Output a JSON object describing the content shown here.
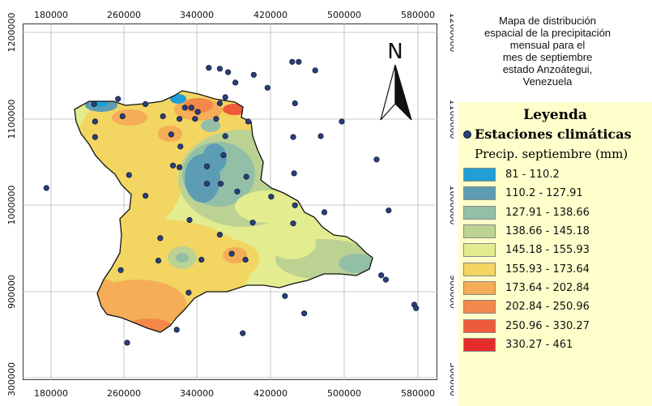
{
  "title_lines": [
    "Mapa de  distribución",
    "espacial de la precipitación",
    "mensual para el",
    "mes de septiembre",
    "estado Anzoátegui,",
    "Venezuela"
  ],
  "north_arrow": {
    "label": "N"
  },
  "axes": {
    "x_ticks": [
      "180000",
      "260000",
      "340000",
      "420000",
      "500000",
      "580000"
    ],
    "y_ticks": [
      "1200000",
      "1100000",
      "1000000",
      "900000",
      "300000"
    ]
  },
  "legend": {
    "title": "Leyenda",
    "stations_label": "Estaciones climáticas",
    "precip_title": "Precip. septiembre (mm)",
    "classes": [
      {
        "label": "81 - 110.2",
        "color": "#1f9fd6"
      },
      {
        "label": "110.2 - 127.91",
        "color": "#5d9db4"
      },
      {
        "label": "127.91 - 138.66",
        "color": "#93bfa6"
      },
      {
        "label": "138.66 - 145.18",
        "color": "#bcd293"
      },
      {
        "label": "145.18 - 155.93",
        "color": "#e3ec8f"
      },
      {
        "label": "155.93 - 173.64",
        "color": "#f3d562"
      },
      {
        "label": "173.64 - 202.84",
        "color": "#f5ad57"
      },
      {
        "label": "202.84 - 250.96",
        "color": "#f3884a"
      },
      {
        "label": "250.96 - 330.27",
        "color": "#ee5b3b"
      },
      {
        "label": "330.27 - 461",
        "color": "#e62b2b"
      }
    ]
  },
  "stations": [
    {
      "x": 352000,
      "y": 1159000
    },
    {
      "x": 364000,
      "y": 1158000
    },
    {
      "x": 373000,
      "y": 1154000
    },
    {
      "x": 381000,
      "y": 1142000
    },
    {
      "x": 401000,
      "y": 1151000
    },
    {
      "x": 416000,
      "y": 1136000
    },
    {
      "x": 443000,
      "y": 1166000
    },
    {
      "x": 450000,
      "y": 1166000
    },
    {
      "x": 468000,
      "y": 1156000
    },
    {
      "x": 446000,
      "y": 1118000
    },
    {
      "x": 497000,
      "y": 1097000
    },
    {
      "x": 474000,
      "y": 1080000
    },
    {
      "x": 444000,
      "y": 1079000
    },
    {
      "x": 535000,
      "y": 1053000
    },
    {
      "x": 445000,
      "y": 1037000
    },
    {
      "x": 420000,
      "y": 1010000
    },
    {
      "x": 446000,
      "y": 1000000
    },
    {
      "x": 478000,
      "y": 992000
    },
    {
      "x": 548000,
      "y": 994000
    },
    {
      "x": 444000,
      "y": 979000
    },
    {
      "x": 540000,
      "y": 919000
    },
    {
      "x": 545000,
      "y": 914000
    },
    {
      "x": 576000,
      "y": 885000
    },
    {
      "x": 578000,
      "y": 881000
    },
    {
      "x": 435000,
      "y": 895000
    },
    {
      "x": 456000,
      "y": 875000
    },
    {
      "x": 389000,
      "y": 852000
    },
    {
      "x": 175000,
      "y": 1020000
    },
    {
      "x": 227000,
      "y": 1117000
    },
    {
      "x": 253000,
      "y": 1123000
    },
    {
      "x": 258000,
      "y": 1103000
    },
    {
      "x": 283000,
      "y": 1117000
    },
    {
      "x": 302000,
      "y": 1103000
    },
    {
      "x": 320000,
      "y": 1100000
    },
    {
      "x": 326000,
      "y": 1113000
    },
    {
      "x": 333000,
      "y": 1113000
    },
    {
      "x": 340000,
      "y": 1108000
    },
    {
      "x": 337000,
      "y": 1100000
    },
    {
      "x": 360000,
      "y": 1100000
    },
    {
      "x": 364000,
      "y": 1118000
    },
    {
      "x": 370000,
      "y": 1125000
    },
    {
      "x": 395000,
      "y": 1097000
    },
    {
      "x": 228000,
      "y": 1097000
    },
    {
      "x": 228000,
      "y": 1079000
    },
    {
      "x": 311000,
      "y": 1082000
    },
    {
      "x": 321000,
      "y": 1068000
    },
    {
      "x": 368000,
      "y": 1058000
    },
    {
      "x": 313000,
      "y": 1046000
    },
    {
      "x": 320000,
      "y": 1044000
    },
    {
      "x": 350000,
      "y": 1045000
    },
    {
      "x": 393000,
      "y": 1033000
    },
    {
      "x": 365000,
      "y": 1025000
    },
    {
      "x": 350000,
      "y": 1025000
    },
    {
      "x": 265000,
      "y": 1035000
    },
    {
      "x": 283000,
      "y": 1011000
    },
    {
      "x": 383000,
      "y": 1016000
    },
    {
      "x": 331000,
      "y": 983000
    },
    {
      "x": 364000,
      "y": 966000
    },
    {
      "x": 400000,
      "y": 980000
    },
    {
      "x": 377000,
      "y": 944000
    },
    {
      "x": 299000,
      "y": 962000
    },
    {
      "x": 297000,
      "y": 936000
    },
    {
      "x": 344000,
      "y": 937000
    },
    {
      "x": 392000,
      "y": 937000
    },
    {
      "x": 256000,
      "y": 925000
    },
    {
      "x": 330000,
      "y": 899000
    },
    {
      "x": 317000,
      "y": 856000
    },
    {
      "x": 263000,
      "y": 841000
    },
    {
      "x": 370000,
      "y": 1080000
    }
  ]
}
